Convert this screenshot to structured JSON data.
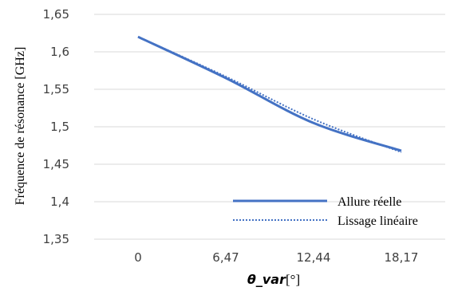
{
  "chart_data": {
    "type": "line",
    "categories": [
      "0",
      "6,47",
      "12,44",
      "18,17"
    ],
    "x": [
      0,
      6.47,
      12.44,
      18.17
    ],
    "series": [
      {
        "name": "Allure réelle",
        "values": [
          1.62,
          1.565,
          1.505,
          1.468
        ],
        "color": "#4472C4",
        "style": "solid"
      },
      {
        "name": "Lissage linéaire",
        "values": [
          1.62,
          1.567,
          1.51,
          1.466
        ],
        "color": "#4472C4",
        "style": "dotted"
      }
    ],
    "ylabel": "Fréquence de résonance [GHz]",
    "xlabel_var": "θ_var",
    "xlabel_unit": "[°]",
    "ylim": [
      1.35,
      1.65
    ],
    "yticks": [
      "1,35",
      "1,4",
      "1,45",
      "1,5",
      "1,55",
      "1,6",
      "1,65"
    ],
    "grid": "horizontal",
    "legend_position": "bottom-right"
  }
}
